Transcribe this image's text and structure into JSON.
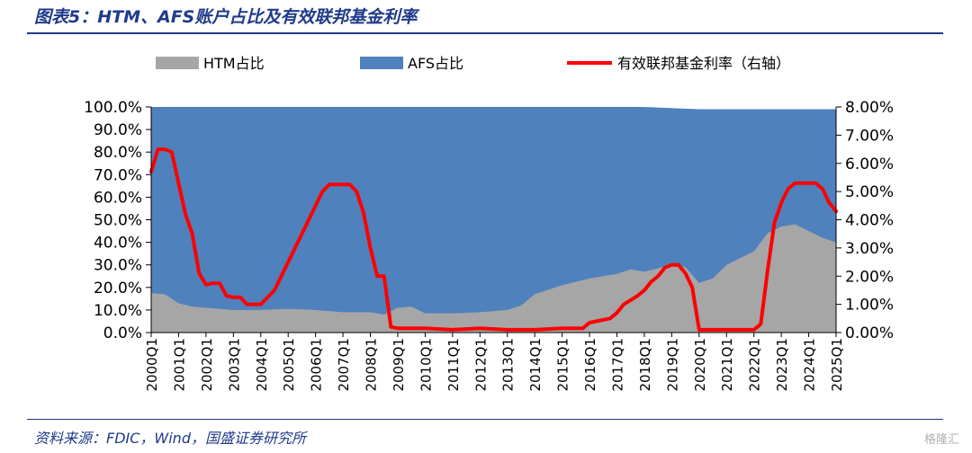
{
  "header": {
    "title": "图表5：HTM、AFS账户占比及有效联邦基金利率"
  },
  "footer": {
    "source": "资料来源：FDIC，Wind，国盛证券研究所",
    "watermark": "格隆汇"
  },
  "colors": {
    "htm": "#a6a6a6",
    "afs": "#4f81bd",
    "rate": "#ff0000",
    "title": "#1f3a8a"
  },
  "chart_data": {
    "type": "area",
    "legend": [
      "HTM占比",
      "AFS占比",
      "有效联邦基金利率（右轴）"
    ],
    "legend_position": "top",
    "x_tick_labels": [
      "2000Q1",
      "2001Q1",
      "2002Q1",
      "2003Q1",
      "2004Q1",
      "2005Q1",
      "2006Q1",
      "2007Q1",
      "2008Q1",
      "2009Q1",
      "2010Q1",
      "2011Q1",
      "2012Q1",
      "2013Q1",
      "2014Q1",
      "2015Q1",
      "2016Q1",
      "2017Q1",
      "2018Q1",
      "2019Q1",
      "2020Q1",
      "2021Q1",
      "2022Q1",
      "2023Q1",
      "2024Q1",
      "2025Q1"
    ],
    "y_left": {
      "label": "",
      "range": [
        0,
        100
      ],
      "ticks": [
        "0.0%",
        "10.0%",
        "20.0%",
        "30.0%",
        "40.0%",
        "50.0%",
        "60.0%",
        "70.0%",
        "80.0%",
        "90.0%",
        "100.0%"
      ]
    },
    "y_right": {
      "label": "",
      "range": [
        0,
        8
      ],
      "ticks": [
        "0.00%",
        "1.00%",
        "2.00%",
        "3.00%",
        "4.00%",
        "5.00%",
        "6.00%",
        "7.00%",
        "8.00%"
      ]
    },
    "grid": false,
    "series": [
      {
        "name": "HTM占比",
        "type": "area",
        "axis": "left",
        "x": [
          "2000Q1",
          "2000Q3",
          "2001Q1",
          "2001Q3",
          "2002Q1",
          "2003Q1",
          "2004Q1",
          "2005Q1",
          "2006Q1",
          "2007Q1",
          "2008Q1",
          "2008Q3",
          "2009Q1",
          "2009Q3",
          "2010Q1",
          "2011Q1",
          "2012Q1",
          "2013Q1",
          "2013Q3",
          "2014Q1",
          "2015Q1",
          "2016Q1",
          "2017Q1",
          "2017Q3",
          "2018Q1",
          "2019Q1",
          "2019Q3",
          "2020Q1",
          "2020Q3",
          "2021Q1",
          "2021Q3",
          "2022Q1",
          "2022Q3",
          "2023Q1",
          "2023Q3",
          "2024Q1",
          "2024Q3",
          "2025Q1"
        ],
        "values": [
          17.5,
          17,
          13,
          11.5,
          11,
          10,
          10,
          10.5,
          10,
          9,
          9,
          8,
          11,
          11.5,
          8.5,
          8.5,
          9,
          10,
          12,
          17,
          21,
          24,
          26,
          28,
          27,
          30,
          29,
          22,
          24,
          30,
          33,
          36,
          44,
          47,
          48,
          45,
          42,
          40
        ]
      },
      {
        "name": "AFS占比",
        "type": "area",
        "axis": "left",
        "x": [
          "2000Q1",
          "2018Q1",
          "2019Q1",
          "2020Q1",
          "2025Q1"
        ],
        "values": [
          100,
          100,
          99.5,
          99,
          99
        ]
      },
      {
        "name": "有效联邦基金利率（右轴）",
        "type": "line",
        "axis": "right",
        "x": [
          "2000Q1",
          "2000Q2",
          "2000Q3",
          "2000Q4",
          "2001Q1",
          "2001Q2",
          "2001Q3",
          "2001Q4",
          "2002Q1",
          "2002Q2",
          "2002Q3",
          "2002Q4",
          "2003Q1",
          "2003Q2",
          "2003Q3",
          "2003Q4",
          "2004Q1",
          "2004Q2",
          "2004Q3",
          "2004Q4",
          "2005Q1",
          "2005Q2",
          "2005Q3",
          "2005Q4",
          "2006Q1",
          "2006Q2",
          "2006Q3",
          "2006Q4",
          "2007Q1",
          "2007Q2",
          "2007Q3",
          "2007Q4",
          "2008Q1",
          "2008Q2",
          "2008Q3",
          "2008Q4",
          "2009Q1",
          "2010Q1",
          "2011Q1",
          "2012Q1",
          "2013Q1",
          "2014Q1",
          "2015Q1",
          "2015Q4",
          "2016Q1",
          "2016Q4",
          "2017Q1",
          "2017Q2",
          "2017Q3",
          "2017Q4",
          "2018Q1",
          "2018Q2",
          "2018Q3",
          "2018Q4",
          "2019Q1",
          "2019Q2",
          "2019Q3",
          "2019Q4",
          "2020Q1",
          "2020Q2",
          "2021Q1",
          "2022Q1",
          "2022Q2",
          "2022Q3",
          "2022Q4",
          "2023Q1",
          "2023Q2",
          "2023Q3",
          "2024Q1",
          "2024Q2",
          "2024Q3",
          "2024Q4",
          "2025Q1"
        ],
        "values": [
          5.7,
          6.5,
          6.5,
          6.4,
          5.3,
          4.2,
          3.5,
          2.1,
          1.7,
          1.75,
          1.75,
          1.3,
          1.25,
          1.25,
          1.0,
          1.0,
          1.0,
          1.25,
          1.5,
          2.0,
          2.5,
          3.0,
          3.5,
          4.0,
          4.5,
          5.0,
          5.25,
          5.25,
          5.25,
          5.25,
          5.0,
          4.25,
          3.0,
          2.0,
          2.0,
          0.2,
          0.15,
          0.15,
          0.1,
          0.15,
          0.1,
          0.1,
          0.15,
          0.15,
          0.35,
          0.5,
          0.7,
          1.0,
          1.15,
          1.3,
          1.5,
          1.8,
          2.0,
          2.3,
          2.4,
          2.4,
          2.1,
          1.6,
          0.1,
          0.1,
          0.1,
          0.1,
          0.3,
          2.2,
          3.9,
          4.6,
          5.1,
          5.3,
          5.3,
          5.3,
          5.1,
          4.6,
          4.3
        ]
      }
    ]
  }
}
